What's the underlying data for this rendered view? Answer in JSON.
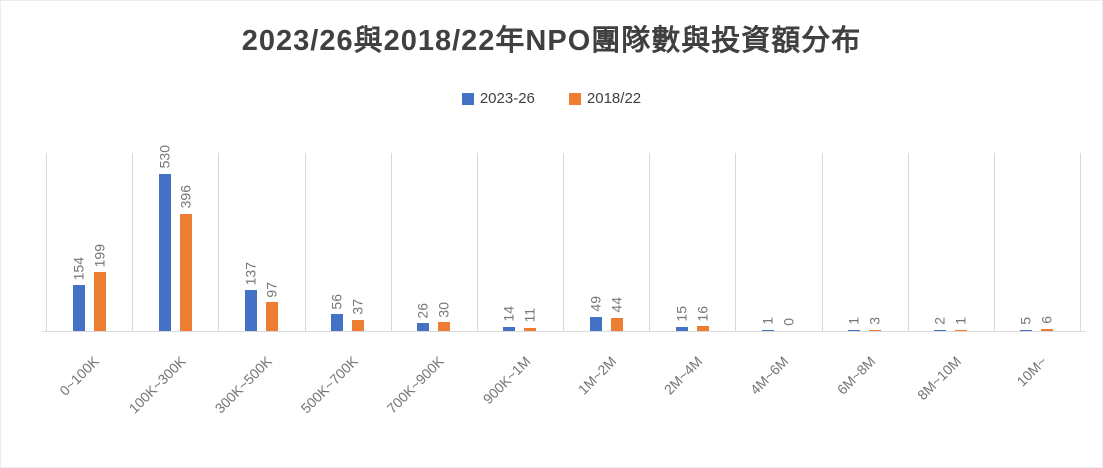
{
  "chart_data": {
    "type": "bar",
    "title": "2023/26與2018/22年NPO團隊數與投資額分布",
    "categories": [
      "0~100K",
      "100K~300K",
      "300K~500K",
      "500K~700K",
      "700K~900K",
      "900K~1M",
      "1M~2M",
      "2M~4M",
      "4M~6M",
      "6M~8M",
      "8M~10M",
      "10M~"
    ],
    "series": [
      {
        "name": "2023-26",
        "color": "#4472C4",
        "values": [
          154,
          530,
          137,
          56,
          26,
          14,
          49,
          15,
          1,
          1,
          2,
          5
        ]
      },
      {
        "name": "2018/22",
        "color": "#ED7D31",
        "values": [
          199,
          396,
          97,
          37,
          30,
          11,
          44,
          16,
          0,
          3,
          1,
          6
        ]
      }
    ],
    "xlabel": "",
    "ylabel": "",
    "ylim": [
      0,
      600
    ],
    "y_axis_visible": false,
    "grid": "vertical-category-boundaries",
    "gridline_color": "#D9D9D9",
    "legend_position": "top",
    "data_labels_rotation_deg": 90,
    "x_tick_rotation_deg": 45,
    "label_color": "#767676",
    "title_color": "#404040"
  }
}
